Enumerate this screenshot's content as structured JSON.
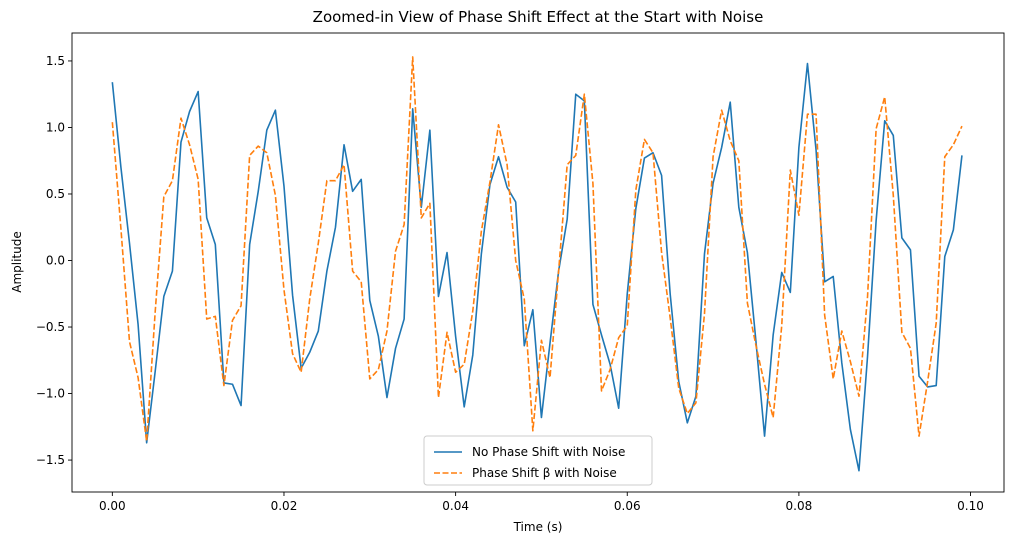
{
  "chart_data": {
    "type": "line",
    "title": "Zoomed-in View of Phase Shift Effect at the Start with Noise",
    "xlabel": "Time (s)",
    "ylabel": "Amplitude",
    "xlim": [
      -0.0047,
      0.1039
    ],
    "ylim": [
      -1.74,
      1.71
    ],
    "xticks": [
      0.0,
      0.02,
      0.04,
      0.06,
      0.08,
      0.1
    ],
    "xtick_labels": [
      "0.00",
      "0.02",
      "0.04",
      "0.06",
      "0.08",
      "0.10"
    ],
    "yticks": [
      -1.5,
      -1.0,
      -0.5,
      0.0,
      0.5,
      1.0,
      1.5
    ],
    "ytick_labels": [
      "−1.5",
      "−1.0",
      "−0.5",
      "0.0",
      "0.5",
      "1.0",
      "1.5"
    ],
    "grid": false,
    "legend_position": "lower center",
    "x": [
      0.0,
      0.001,
      0.002,
      0.003,
      0.004,
      0.005,
      0.006,
      0.007,
      0.008,
      0.009,
      0.01,
      0.011,
      0.012,
      0.013,
      0.014,
      0.015,
      0.016,
      0.017,
      0.018,
      0.019,
      0.02,
      0.021,
      0.022,
      0.023,
      0.024,
      0.025,
      0.026,
      0.027,
      0.028,
      0.029,
      0.03,
      0.031,
      0.032,
      0.033,
      0.034,
      0.035,
      0.036,
      0.037,
      0.038,
      0.039,
      0.04,
      0.041,
      0.042,
      0.043,
      0.044,
      0.045,
      0.046,
      0.047,
      0.048,
      0.049,
      0.05,
      0.051,
      0.052,
      0.053,
      0.054,
      0.055,
      0.056,
      0.057,
      0.058,
      0.059,
      0.06,
      0.061,
      0.062,
      0.063,
      0.064,
      0.065,
      0.066,
      0.067,
      0.068,
      0.069,
      0.07,
      0.071,
      0.072,
      0.073,
      0.074,
      0.075,
      0.076,
      0.077,
      0.078,
      0.079,
      0.08,
      0.081,
      0.082,
      0.083,
      0.084,
      0.085,
      0.086,
      0.087,
      0.088,
      0.089,
      0.09,
      0.091,
      0.092,
      0.093,
      0.094,
      0.095,
      0.096,
      0.097,
      0.098,
      0.099
    ],
    "series": [
      {
        "name": "No Phase Shift with Noise",
        "color": "#1f77b4",
        "dash": "solid",
        "values": [
          1.34,
          0.7,
          0.13,
          -0.48,
          -1.37,
          -0.83,
          -0.27,
          -0.08,
          0.89,
          1.12,
          1.27,
          0.32,
          0.12,
          -0.92,
          -0.93,
          -1.09,
          0.12,
          0.52,
          0.98,
          1.13,
          0.56,
          -0.26,
          -0.81,
          -0.69,
          -0.53,
          -0.08,
          0.25,
          0.87,
          0.52,
          0.61,
          -0.3,
          -0.57,
          -1.03,
          -0.66,
          -0.44,
          1.14,
          0.4,
          0.98,
          -0.27,
          0.06,
          -0.57,
          -1.1,
          -0.71,
          0.05,
          0.57,
          0.78,
          0.55,
          0.44,
          -0.64,
          -0.37,
          -1.18,
          -0.62,
          -0.08,
          0.31,
          1.25,
          1.2,
          -0.33,
          -0.56,
          -0.78,
          -1.11,
          -0.25,
          0.39,
          0.77,
          0.81,
          0.64,
          -0.25,
          -0.91,
          -1.22,
          -1.02,
          0.05,
          0.58,
          0.85,
          1.19,
          0.4,
          0.06,
          -0.61,
          -1.32,
          -0.56,
          -0.09,
          -0.24,
          0.85,
          1.48,
          0.83,
          -0.16,
          -0.12,
          -0.77,
          -1.27,
          -1.58,
          -0.72,
          0.3,
          1.05,
          0.94,
          0.17,
          0.08,
          -0.87,
          -0.95,
          -0.94,
          0.03,
          0.23,
          0.79
        ]
      },
      {
        "name": "Phase Shift β with Noise",
        "color": "#ff7f0e",
        "dash": "dashed",
        "values": [
          1.04,
          0.24,
          -0.61,
          -0.88,
          -1.36,
          -0.38,
          0.48,
          0.6,
          1.07,
          0.87,
          0.61,
          -0.44,
          -0.42,
          -0.94,
          -0.45,
          -0.34,
          0.79,
          0.86,
          0.81,
          0.49,
          -0.22,
          -0.7,
          -0.84,
          -0.29,
          0.13,
          0.6,
          0.6,
          0.72,
          -0.08,
          -0.16,
          -0.89,
          -0.82,
          -0.53,
          0.07,
          0.27,
          1.53,
          0.32,
          0.43,
          -1.03,
          -0.54,
          -0.84,
          -0.78,
          -0.38,
          0.22,
          0.59,
          1.02,
          0.72,
          0.0,
          -0.29,
          -1.28,
          -0.6,
          -0.88,
          -0.08,
          0.72,
          0.79,
          1.25,
          0.58,
          -0.98,
          -0.82,
          -0.58,
          -0.49,
          0.53,
          0.91,
          0.81,
          0.06,
          -0.43,
          -0.96,
          -1.15,
          -1.07,
          -0.4,
          0.78,
          1.13,
          0.9,
          0.75,
          -0.32,
          -0.64,
          -0.93,
          -1.18,
          -0.49,
          0.68,
          0.34,
          1.1,
          1.1,
          -0.41,
          -0.89,
          -0.53,
          -0.76,
          -1.02,
          -0.27,
          0.99,
          1.23,
          0.49,
          -0.54,
          -0.66,
          -1.32,
          -0.91,
          -0.47,
          0.78,
          0.87,
          1.01
        ]
      }
    ]
  }
}
